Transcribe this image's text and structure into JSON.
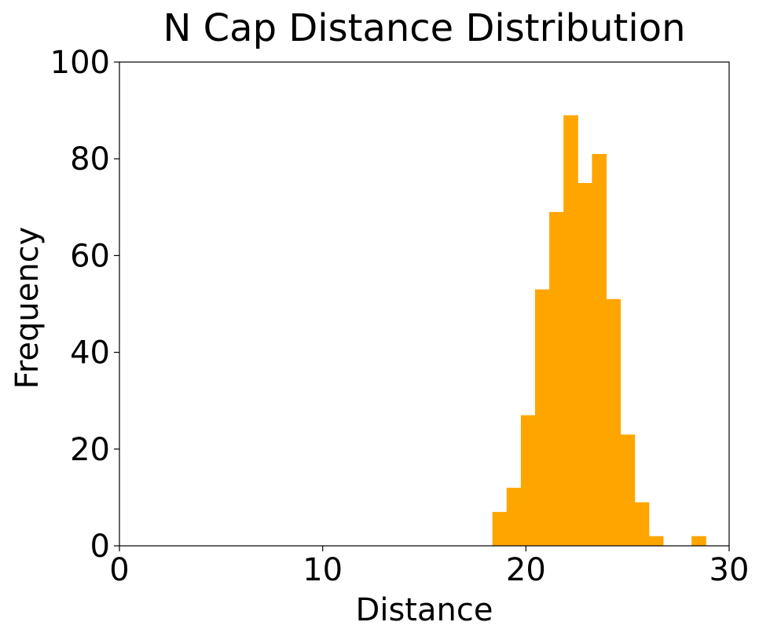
{
  "chart_data": {
    "type": "bar",
    "title": "N Cap Distance Distribution",
    "xlabel": "Distance",
    "ylabel": "Frequency",
    "xlim": [
      0,
      30
    ],
    "ylim": [
      0,
      100
    ],
    "xticks": [
      0,
      10,
      20,
      30
    ],
    "yticks": [
      0,
      20,
      40,
      60,
      80,
      100
    ],
    "grid": false,
    "bar_color": "#FFA500",
    "bin_edges": [
      18.35,
      19.05,
      19.75,
      20.45,
      21.15,
      21.85,
      22.55,
      23.25,
      23.95,
      24.65,
      25.35,
      26.05,
      26.75,
      27.45,
      28.15,
      28.85
    ],
    "values": [
      7,
      12,
      27,
      53,
      69,
      89,
      75,
      81,
      51,
      23,
      9,
      2,
      0,
      0,
      2
    ]
  }
}
